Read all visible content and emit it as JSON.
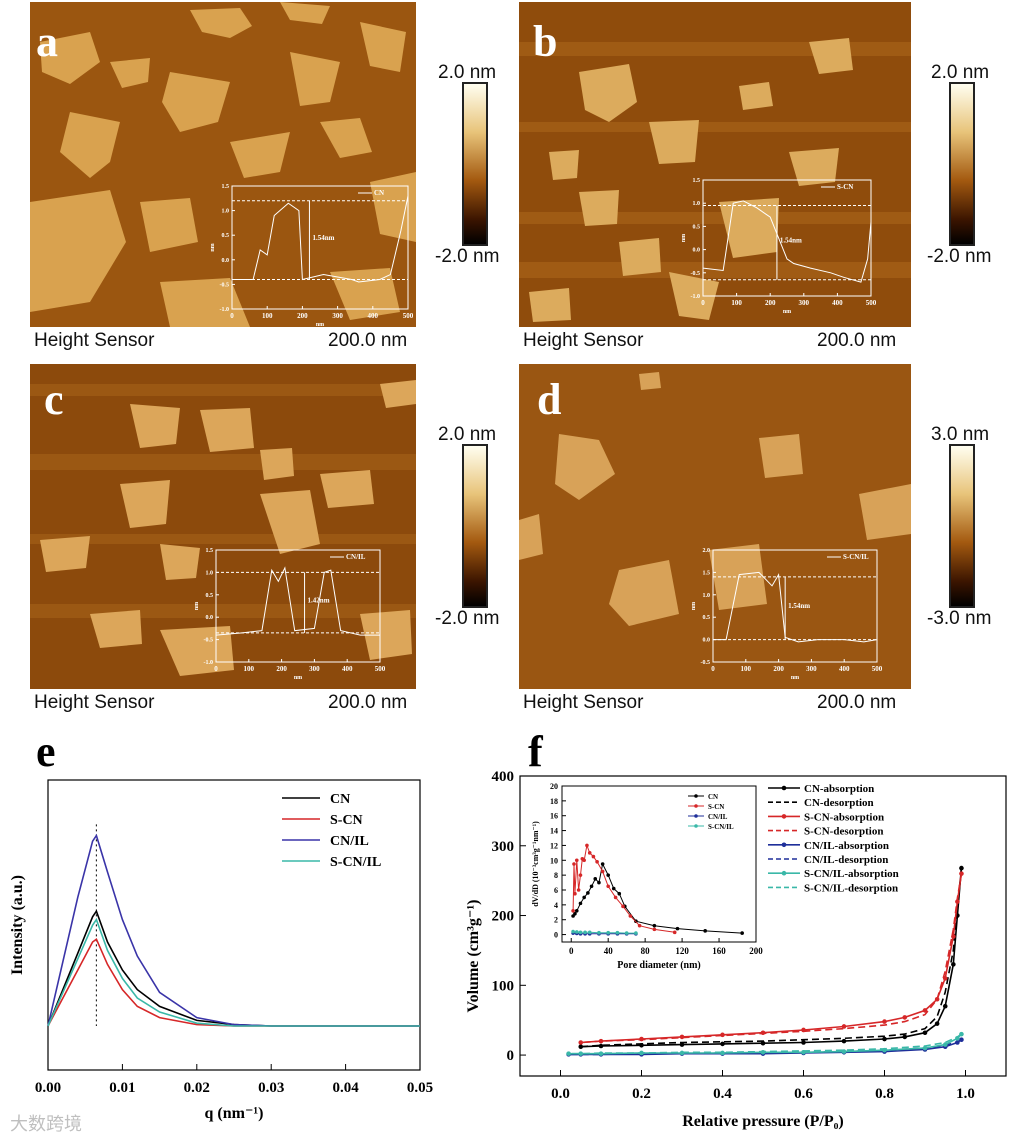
{
  "afm_panels": [
    {
      "letter": "a",
      "sensor": "Height Sensor",
      "scale": "200.0 nm",
      "cbar_top": "2.0 nm",
      "cbar_bottom": "-2.0 nm",
      "profile": {
        "legend": "CN",
        "height_label": "1.54nm",
        "x_ticks": [
          "0",
          "100",
          "200",
          "300",
          "400",
          "500"
        ],
        "y_ticks": [
          "1.5",
          "1.0",
          "0.5",
          "0.0",
          "-0.5",
          "-1.0"
        ],
        "xlabel": "nm",
        "ylabel": "nm"
      }
    },
    {
      "letter": "b",
      "sensor": "Height Sensor",
      "scale": "200.0 nm",
      "cbar_top": "2.0 nm",
      "cbar_bottom": "-2.0 nm",
      "profile": {
        "legend": "S-CN",
        "height_label": "1.54nm",
        "x_ticks": [
          "0",
          "100",
          "200",
          "300",
          "400",
          "500"
        ],
        "y_ticks": [
          "1.5",
          "1.0",
          "0.5",
          "0.0",
          "-0.5",
          "-1.0"
        ],
        "xlabel": "nm",
        "ylabel": "nm"
      }
    },
    {
      "letter": "c",
      "sensor": "Height Sensor",
      "scale": "200.0 nm",
      "cbar_top": "2.0 nm",
      "cbar_bottom": "-2.0 nm",
      "profile": {
        "legend": "CN/IL",
        "height_label": "1.42nm",
        "x_ticks": [
          "0",
          "100",
          "200",
          "300",
          "400",
          "500"
        ],
        "y_ticks": [
          "1.5",
          "1.0",
          "0.5",
          "0.0",
          "-0.5",
          "-1.0"
        ],
        "xlabel": "nm",
        "ylabel": "nm"
      }
    },
    {
      "letter": "d",
      "sensor": "Height Sensor",
      "scale": "200.0 nm",
      "cbar_top": "3.0 nm",
      "cbar_bottom": "-3.0 nm",
      "profile": {
        "legend": "S-CN/IL",
        "height_label": "1.54nm",
        "x_ticks": [
          "0",
          "100",
          "200",
          "300",
          "400",
          "500"
        ],
        "y_ticks": [
          "2.0",
          "1.5",
          "1.0",
          "0.5",
          "0.0",
          "-0.5"
        ],
        "xlabel": "nm",
        "ylabel": "nm"
      }
    }
  ],
  "chart_data": [
    {
      "type": "line",
      "panel": "e",
      "xlabel": "q (nm⁻¹)",
      "ylabel": "Intensity (a.u.)",
      "xlim": [
        0.0,
        0.05
      ],
      "x_ticks": [
        "0.00",
        "0.01",
        "0.02",
        "0.03",
        "0.04",
        "0.05"
      ],
      "legend_position": "top-right",
      "peak_q": 0.0065,
      "series": [
        {
          "name": "CN",
          "color": "#000000",
          "x": [
            0.0,
            0.002,
            0.004,
            0.006,
            0.0065,
            0.008,
            0.01,
            0.012,
            0.015,
            0.02,
            0.025,
            0.03,
            0.04,
            0.05
          ],
          "y": [
            0.0,
            0.13,
            0.26,
            0.39,
            0.41,
            0.3,
            0.2,
            0.13,
            0.07,
            0.02,
            0.005,
            0.0,
            0.0,
            0.0
          ]
        },
        {
          "name": "S-CN",
          "color": "#d62728",
          "x": [
            0.0,
            0.002,
            0.004,
            0.006,
            0.0065,
            0.008,
            0.01,
            0.012,
            0.015,
            0.02,
            0.025,
            0.03,
            0.04,
            0.05
          ],
          "y": [
            0.0,
            0.1,
            0.2,
            0.3,
            0.31,
            0.22,
            0.13,
            0.07,
            0.03,
            0.005,
            0.0,
            0.0,
            0.0,
            0.0
          ]
        },
        {
          "name": "CN/IL",
          "color": "#3a34a8",
          "x": [
            0.0,
            0.002,
            0.004,
            0.006,
            0.0065,
            0.008,
            0.01,
            0.012,
            0.015,
            0.02,
            0.025,
            0.03,
            0.04,
            0.05
          ],
          "y": [
            0.0,
            0.23,
            0.46,
            0.66,
            0.68,
            0.55,
            0.38,
            0.25,
            0.12,
            0.03,
            0.005,
            0.0,
            0.0,
            0.0
          ]
        },
        {
          "name": "S-CN/IL",
          "color": "#3ab8a8",
          "x": [
            0.0,
            0.002,
            0.004,
            0.006,
            0.0065,
            0.008,
            0.01,
            0.012,
            0.015,
            0.02,
            0.025,
            0.03,
            0.04,
            0.05
          ],
          "y": [
            0.0,
            0.12,
            0.24,
            0.36,
            0.38,
            0.27,
            0.17,
            0.1,
            0.05,
            0.01,
            0.0,
            0.0,
            0.0,
            0.0
          ]
        }
      ]
    },
    {
      "type": "line",
      "panel": "f",
      "xlabel": "Relative pressure (P/P₀)",
      "ylabel": "Volume (cm³g⁻¹)",
      "xlim": [
        -0.1,
        1.1
      ],
      "ylim": [
        -30,
        400
      ],
      "x_ticks": [
        "0.0",
        "0.2",
        "0.4",
        "0.6",
        "0.8",
        "1.0"
      ],
      "y_ticks": [
        "0",
        "100",
        "200",
        "300",
        "400"
      ],
      "legend_position": "top-right",
      "series": [
        {
          "name": "CN-absorption",
          "color": "#000000",
          "dash": false,
          "marker": "circle",
          "x": [
            0.05,
            0.1,
            0.2,
            0.3,
            0.4,
            0.5,
            0.6,
            0.7,
            0.8,
            0.85,
            0.9,
            0.93,
            0.95,
            0.97,
            0.98,
            0.99
          ],
          "y": [
            12,
            13,
            14,
            15,
            16,
            17,
            18,
            20,
            23,
            26,
            32,
            45,
            70,
            130,
            200,
            268
          ]
        },
        {
          "name": "CN-desorption",
          "color": "#000000",
          "dash": true,
          "marker": "none",
          "x": [
            0.99,
            0.98,
            0.97,
            0.95,
            0.93,
            0.9,
            0.85,
            0.8,
            0.7,
            0.6,
            0.5,
            0.4,
            0.3,
            0.2,
            0.1,
            0.05
          ],
          "y": [
            268,
            210,
            150,
            90,
            55,
            38,
            30,
            27,
            24,
            22,
            20,
            19,
            18,
            16,
            14,
            12
          ]
        },
        {
          "name": "S-CN-absorption",
          "color": "#d62728",
          "dash": false,
          "marker": "circle",
          "x": [
            0.05,
            0.1,
            0.2,
            0.3,
            0.4,
            0.5,
            0.6,
            0.7,
            0.8,
            0.85,
            0.9,
            0.93,
            0.95,
            0.97,
            0.98,
            0.99
          ],
          "y": [
            18,
            20,
            23,
            26,
            29,
            32,
            36,
            41,
            48,
            54,
            64,
            80,
            110,
            170,
            220,
            260
          ]
        },
        {
          "name": "S-CN-desorption",
          "color": "#d62728",
          "dash": true,
          "marker": "none",
          "x": [
            0.99,
            0.98,
            0.97,
            0.95,
            0.93,
            0.9,
            0.85,
            0.8,
            0.7,
            0.6,
            0.5,
            0.4,
            0.3,
            0.2,
            0.1,
            0.05
          ],
          "y": [
            260,
            225,
            180,
            120,
            80,
            58,
            48,
            43,
            38,
            34,
            31,
            28,
            25,
            22,
            20,
            18
          ]
        },
        {
          "name": "CN/IL-absorption",
          "color": "#1f2f9a",
          "dash": false,
          "marker": "circle",
          "x": [
            0.02,
            0.05,
            0.1,
            0.2,
            0.3,
            0.4,
            0.5,
            0.6,
            0.7,
            0.8,
            0.9,
            0.95,
            0.98,
            0.99
          ],
          "y": [
            1,
            1,
            1,
            1,
            2,
            2,
            2,
            3,
            4,
            5,
            8,
            12,
            18,
            22
          ]
        },
        {
          "name": "CN/IL-desorption",
          "color": "#1f2f9a",
          "dash": true,
          "marker": "none",
          "x": [
            0.99,
            0.98,
            0.95,
            0.9,
            0.8,
            0.7,
            0.6,
            0.5,
            0.4,
            0.3,
            0.2,
            0.1,
            0.05,
            0.02
          ],
          "y": [
            22,
            19,
            14,
            10,
            7,
            5,
            4,
            3,
            3,
            2,
            2,
            1,
            1,
            1
          ]
        },
        {
          "name": "S-CN/IL-absorption",
          "color": "#3ab8a8",
          "dash": false,
          "marker": "circle",
          "x": [
            0.02,
            0.05,
            0.1,
            0.2,
            0.3,
            0.4,
            0.5,
            0.6,
            0.7,
            0.8,
            0.9,
            0.95,
            0.98,
            0.99
          ],
          "y": [
            2,
            2,
            2,
            3,
            3,
            3,
            4,
            4,
            5,
            7,
            10,
            15,
            24,
            30
          ]
        },
        {
          "name": "S-CN/IL-desorption",
          "color": "#3ab8a8",
          "dash": true,
          "marker": "none",
          "x": [
            0.99,
            0.98,
            0.95,
            0.9,
            0.8,
            0.7,
            0.6,
            0.5,
            0.4,
            0.3,
            0.2,
            0.1,
            0.05,
            0.02
          ],
          "y": [
            30,
            26,
            18,
            13,
            9,
            7,
            6,
            5,
            4,
            4,
            3,
            3,
            2,
            2
          ]
        }
      ],
      "inset": {
        "type": "line",
        "xlabel": "Pore diameter (nm)",
        "ylabel": "dV/dD (10⁻³cm³g⁻¹nm⁻¹)",
        "xlim": [
          -10,
          200
        ],
        "ylim": [
          -1,
          20
        ],
        "x_ticks": [
          "0",
          "40",
          "80",
          "120",
          "160",
          "200"
        ],
        "y_ticks": [
          "0",
          "2",
          "4",
          "6",
          "8",
          "10",
          "12",
          "14",
          "16",
          "18",
          "20"
        ],
        "legend_position": "top-right",
        "series": [
          {
            "name": "CN",
            "color": "#000000",
            "x": [
              2,
              4,
              6,
              10,
              14,
              18,
              22,
              26,
              30,
              34,
              40,
              46,
              52,
              58,
              70,
              90,
              115,
              145,
              185
            ],
            "y": [
              2.5,
              2.8,
              3.2,
              4.2,
              5.0,
              5.6,
              6.5,
              7.5,
              7.0,
              9.5,
              8.0,
              6.2,
              5.5,
              3.8,
              1.8,
              1.2,
              0.8,
              0.5,
              0.2
            ]
          },
          {
            "name": "S-CN",
            "color": "#d62728",
            "x": [
              2,
              3,
              4,
              6,
              8,
              10,
              12,
              14,
              17,
              20,
              24,
              28,
              34,
              40,
              48,
              56,
              64,
              74,
              90,
              112
            ],
            "y": [
              3.2,
              9.5,
              5.5,
              10.0,
              6.0,
              8.0,
              10.2,
              10.0,
              12.0,
              11.0,
              10.5,
              9.8,
              8.5,
              6.5,
              5.0,
              3.8,
              2.5,
              1.2,
              0.7,
              0.3
            ]
          },
          {
            "name": "CN/IL",
            "color": "#1f2f9a",
            "x": [
              2,
              6,
              10,
              15,
              20,
              30,
              40,
              50,
              60,
              70
            ],
            "y": [
              0.2,
              0.15,
              0.1,
              0.1,
              0.1,
              0.1,
              0.1,
              0.1,
              0.1,
              0.1
            ]
          },
          {
            "name": "S-CN/IL",
            "color": "#3ab8a8",
            "x": [
              2,
              6,
              10,
              15,
              20,
              30,
              40,
              50,
              60,
              70
            ],
            "y": [
              0.4,
              0.35,
              0.3,
              0.3,
              0.3,
              0.25,
              0.25,
              0.25,
              0.2,
              0.2
            ]
          }
        ]
      }
    }
  ],
  "panel_letters": {
    "e": "e",
    "f": "f"
  },
  "watermark": "大数跨境",
  "colors": {
    "afm_dark": "#5a2a00",
    "afm_mid": "#a45a10",
    "afm_bright": "#e8c47a"
  }
}
